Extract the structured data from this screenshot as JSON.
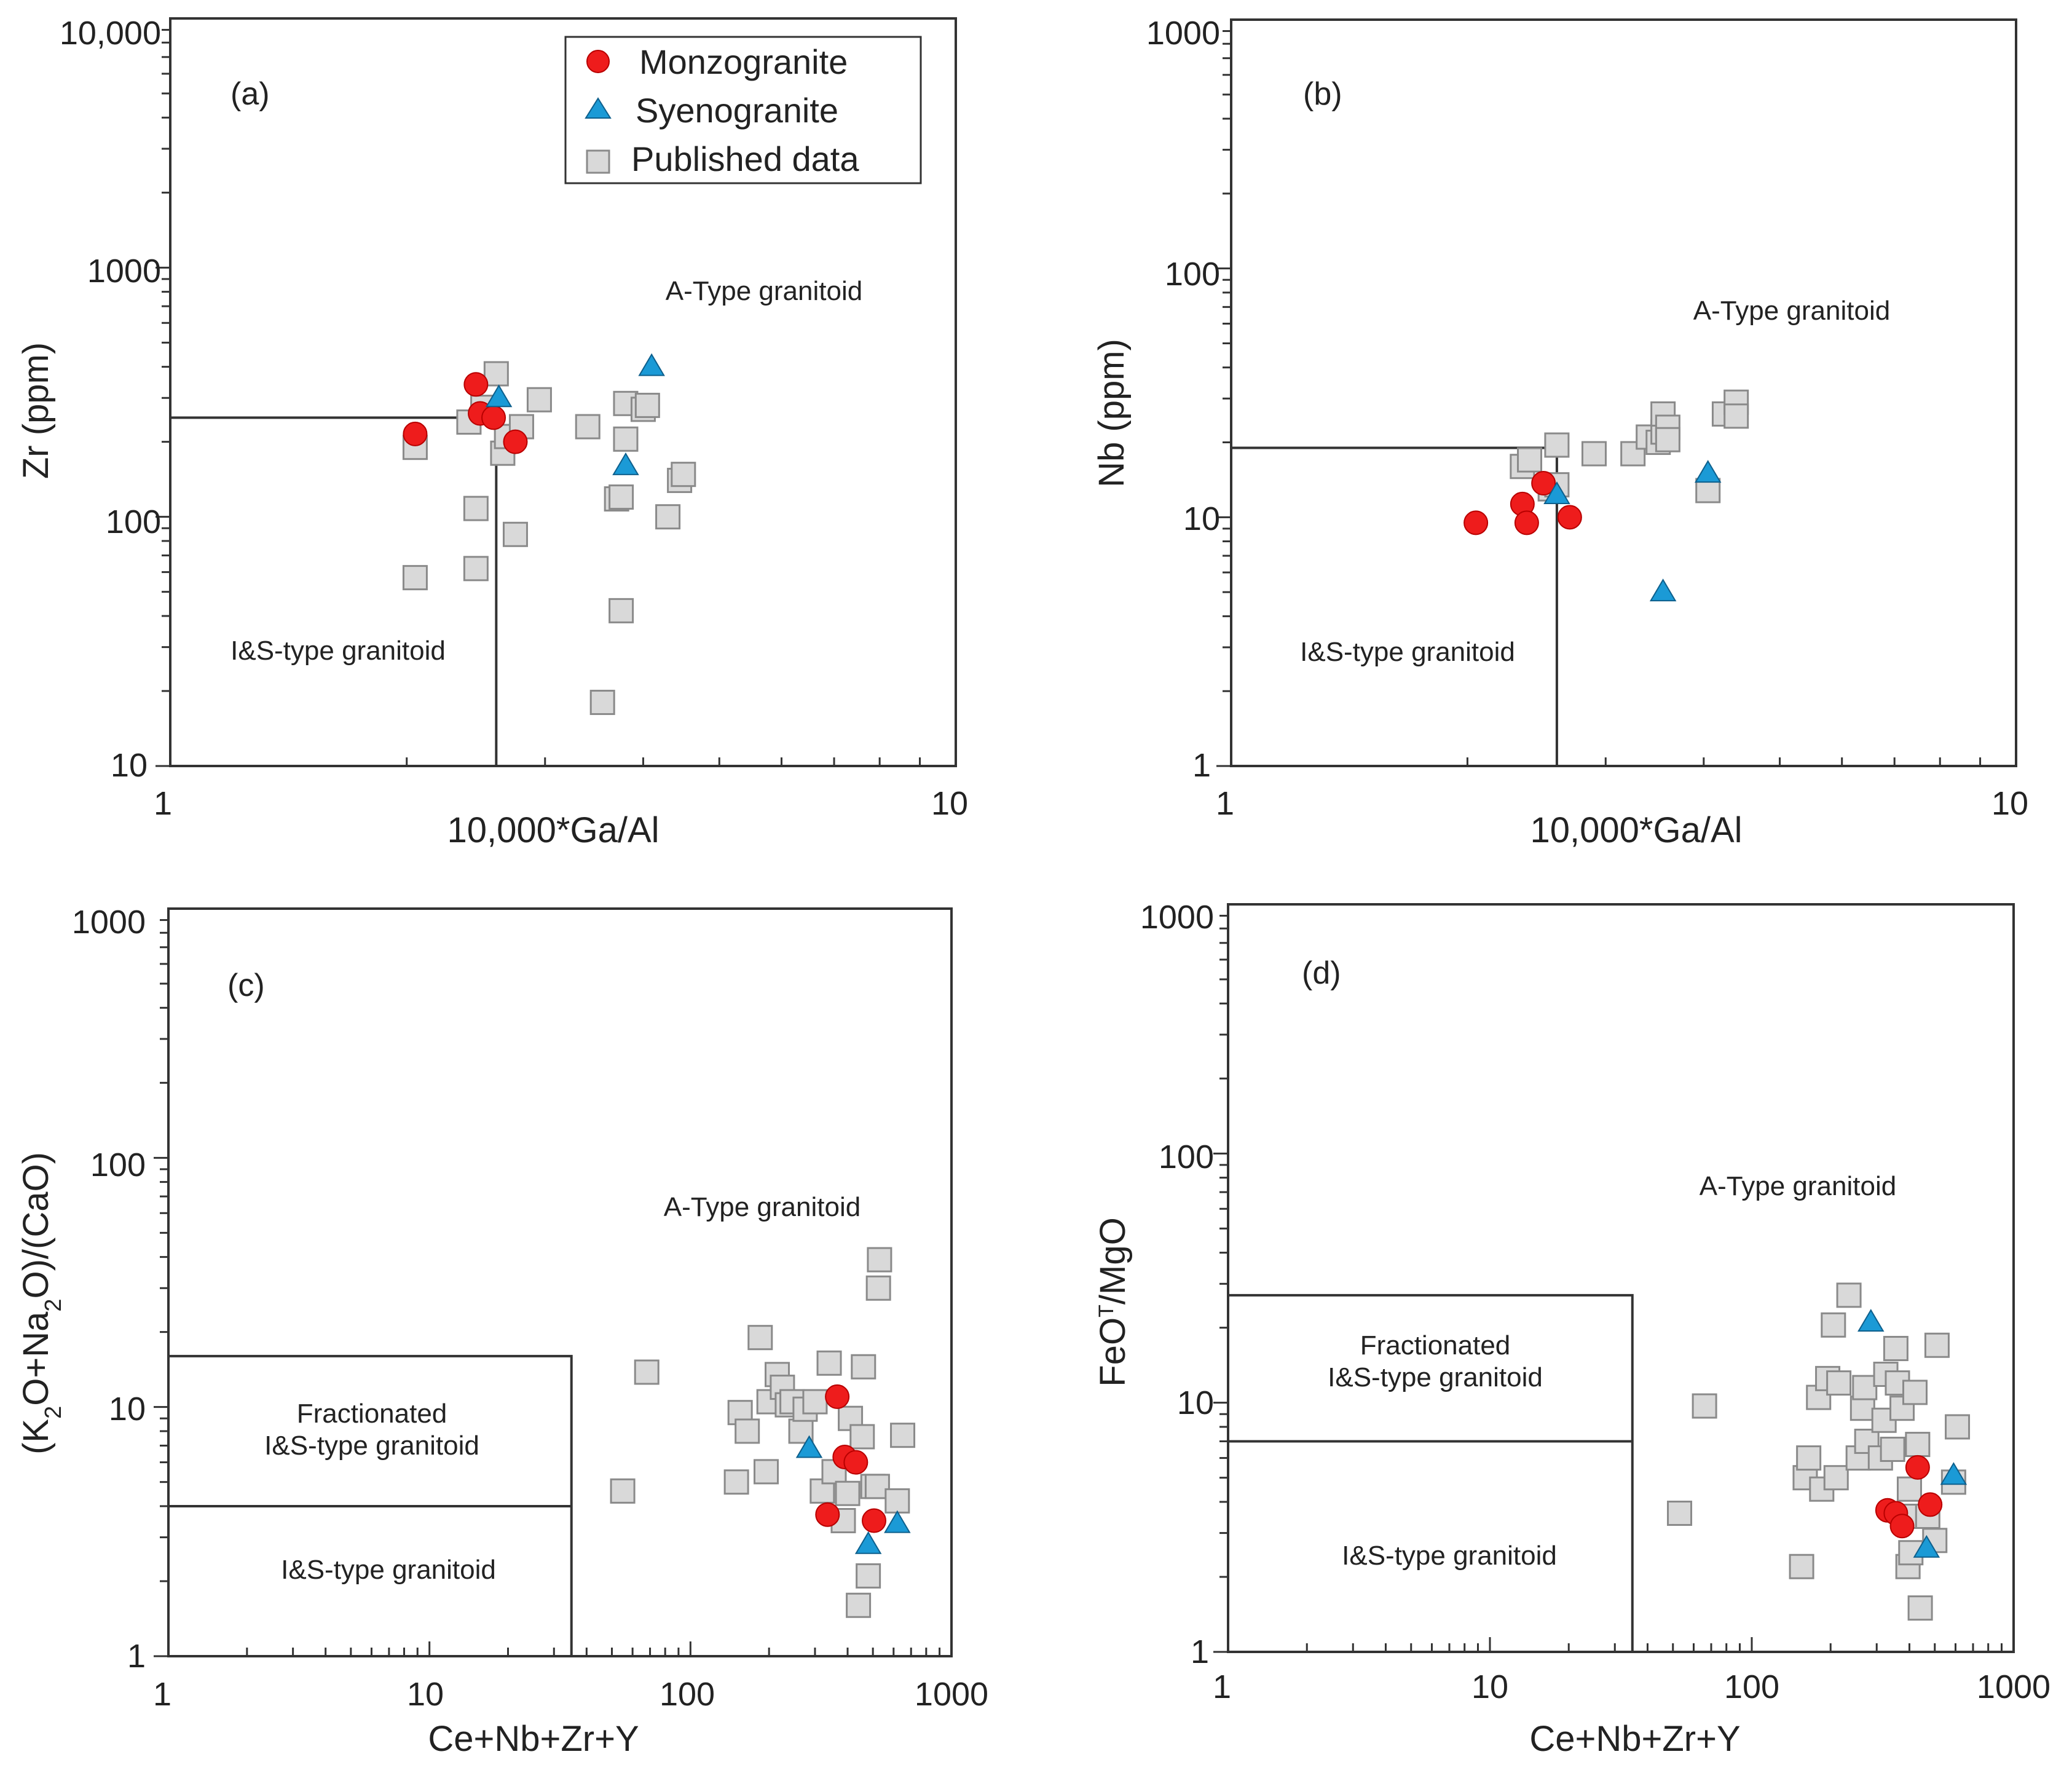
{
  "legend": {
    "monzogranite": "Monzogranite",
    "syenogranite": "Syenogranite",
    "published": "Published data"
  },
  "colors": {
    "monzogranite": "#ee1c1c",
    "syenogranite": "#1b9ad6",
    "published": "#d9d9d9"
  },
  "chart_data": [
    {
      "type": "scatter",
      "panel": "(a)",
      "xlabel": "10,000*Ga/Al",
      "ylabel": "Zr (ppm)",
      "xscale": "log",
      "yscale": "log",
      "xlim": [
        1,
        10
      ],
      "ylim": [
        10,
        10000
      ],
      "x_ticks": [
        "1",
        "10"
      ],
      "y_ticks": [
        "10",
        "100",
        "1000",
        "10,000"
      ],
      "region_labels": {
        "upper": "A-Type granitoid",
        "lower": "I&S-type granitoid"
      },
      "boundary": {
        "x": 2.6,
        "y": 250
      },
      "legend_position": "top-right",
      "series": [
        {
          "name": "Published data",
          "points": [
            [
              2.05,
              57
            ],
            [
              2.05,
              190
            ],
            [
              2.4,
              240
            ],
            [
              2.45,
              62
            ],
            [
              2.45,
              108
            ],
            [
              2.5,
              275
            ],
            [
              2.75,
              85
            ],
            [
              2.6,
              375
            ],
            [
              2.65,
              180
            ],
            [
              2.68,
              210
            ],
            [
              2.8,
              230
            ],
            [
              2.95,
              295
            ],
            [
              3.4,
              230
            ],
            [
              3.55,
              18
            ],
            [
              3.7,
              118
            ],
            [
              3.75,
              42
            ],
            [
              3.75,
              120
            ],
            [
              3.8,
              205
            ],
            [
              3.8,
              285
            ],
            [
              4.0,
              270
            ],
            [
              4.05,
              280
            ],
            [
              4.3,
              100
            ],
            [
              4.45,
              140
            ],
            [
              4.5,
              148
            ]
          ]
        },
        {
          "name": "Monzogranite",
          "points": [
            [
              2.05,
              215
            ],
            [
              2.45,
              340
            ],
            [
              2.48,
              260
            ],
            [
              2.58,
              250
            ],
            [
              2.75,
              200
            ]
          ]
        },
        {
          "name": "Syenogranite",
          "points": [
            [
              2.62,
              300
            ],
            [
              3.8,
              160
            ],
            [
              4.1,
              400
            ]
          ]
        }
      ]
    },
    {
      "type": "scatter",
      "panel": "(b)",
      "xlabel": "10,000*Ga/Al",
      "ylabel": "Nb (ppm)",
      "xscale": "log",
      "yscale": "log",
      "xlim": [
        1,
        10
      ],
      "ylim": [
        1,
        1000
      ],
      "x_ticks": [
        "1",
        "10"
      ],
      "y_ticks": [
        "1",
        "10",
        "100",
        "1000"
      ],
      "region_labels": {
        "upper": "A-Type granitoid",
        "lower": "I&S-type granitoid"
      },
      "boundary": {
        "x": 2.6,
        "y": 19
      },
      "series": [
        {
          "name": "Published data",
          "points": [
            [
              2.35,
              16
            ],
            [
              2.4,
              17
            ],
            [
              2.55,
              13
            ],
            [
              2.6,
              19.5
            ],
            [
              2.6,
              13.5
            ],
            [
              2.9,
              18
            ],
            [
              3.25,
              18
            ],
            [
              3.4,
              21
            ],
            [
              3.5,
              20
            ],
            [
              3.55,
              22
            ],
            [
              3.55,
              26
            ],
            [
              3.6,
              23
            ],
            [
              3.6,
              20.5
            ],
            [
              4.05,
              12.8
            ],
            [
              4.25,
              26
            ],
            [
              4.4,
              29
            ],
            [
              4.4,
              25.5
            ]
          ]
        },
        {
          "name": "Monzogranite",
          "points": [
            [
              2.05,
              9.5
            ],
            [
              2.35,
              11.3
            ],
            [
              2.38,
              9.5
            ],
            [
              2.5,
              13.7
            ],
            [
              2.7,
              10
            ]
          ]
        },
        {
          "name": "Syenogranite",
          "points": [
            [
              2.6,
              12.3
            ],
            [
              3.55,
              5
            ],
            [
              4.05,
              15
            ]
          ]
        }
      ]
    },
    {
      "type": "scatter",
      "panel": "(c)",
      "xlabel": "Ce+Nb+Zr+Y",
      "ylabel": "(K2O+Na2O)/(CaO)",
      "xscale": "log",
      "yscale": "log",
      "xlim": [
        1,
        1000
      ],
      "ylim": [
        1,
        1000
      ],
      "x_ticks": [
        "1",
        "10",
        "100",
        "1000"
      ],
      "y_ticks": [
        "1",
        "10",
        "100",
        "1000"
      ],
      "region_labels": {
        "upper": "A-Type granitoid",
        "middle": "Fractionated\nI&S-type granitoid",
        "lower": "I&S-type granitoid"
      },
      "boundary": {
        "x": 35,
        "y_upper": 16,
        "y_lower": 4
      },
      "series": [
        {
          "name": "Published data",
          "points": [
            [
              55,
              4.6
            ],
            [
              68,
              13.8
            ],
            [
              150,
              5
            ],
            [
              155,
              9.5
            ],
            [
              165,
              8
            ],
            [
              185,
              19
            ],
            [
              195,
              5.5
            ],
            [
              200,
              10.5
            ],
            [
              215,
              13.5
            ],
            [
              225,
              12
            ],
            [
              235,
              10.2
            ],
            [
              245,
              10.5
            ],
            [
              265,
              8
            ],
            [
              275,
              9.8
            ],
            [
              300,
              10.5
            ],
            [
              320,
              4.6
            ],
            [
              340,
              15
            ],
            [
              355,
              5.5
            ],
            [
              385,
              3.5
            ],
            [
              400,
              4.5
            ],
            [
              410,
              9
            ],
            [
              440,
              1.6
            ],
            [
              455,
              7.6
            ],
            [
              460,
              14.5
            ],
            [
              480,
              2.1
            ],
            [
              500,
              4.8
            ],
            [
              520,
              4.8
            ],
            [
              525,
              30
            ],
            [
              530,
              39
            ],
            [
              620,
              4.2
            ],
            [
              650,
              7.7
            ]
          ]
        },
        {
          "name": "Monzogranite",
          "points": [
            [
              335,
              3.7
            ],
            [
              365,
              11
            ],
            [
              390,
              6.3
            ],
            [
              430,
              6
            ],
            [
              505,
              3.5
            ]
          ]
        },
        {
          "name": "Syenogranite",
          "points": [
            [
              285,
              6.8
            ],
            [
              480,
              2.8
            ],
            [
              620,
              3.4
            ]
          ]
        }
      ]
    },
    {
      "type": "scatter",
      "panel": "(d)",
      "xlabel": "Ce+Nb+Zr+Y",
      "ylabel": "FeOT/MgO",
      "xscale": "log",
      "yscale": "log",
      "xlim": [
        1,
        1000
      ],
      "ylim": [
        1,
        1000
      ],
      "x_ticks": [
        "1",
        "10",
        "100",
        "1000"
      ],
      "y_ticks": [
        "1",
        "10",
        "100",
        "1000"
      ],
      "region_labels": {
        "upper": "A-Type granitoid",
        "middle": "Fractionated\nI&S-type granitoid",
        "lower": "I&S-type granitoid"
      },
      "boundary": {
        "x": 35,
        "y_upper": 27,
        "y_lower": 7
      },
      "series": [
        {
          "name": "Published data",
          "points": [
            [
              53,
              3.6
            ],
            [
              66,
              9.7
            ],
            [
              155,
              2.2
            ],
            [
              160,
              5
            ],
            [
              165,
              6
            ],
            [
              180,
              10.5
            ],
            [
              185,
              4.5
            ],
            [
              195,
              12.5
            ],
            [
              205,
              20.5
            ],
            [
              210,
              5
            ],
            [
              215,
              12
            ],
            [
              235,
              27
            ],
            [
              255,
              6
            ],
            [
              265,
              9.5
            ],
            [
              270,
              11.5
            ],
            [
              275,
              7
            ],
            [
              310,
              6
            ],
            [
              320,
              8.5
            ],
            [
              325,
              13
            ],
            [
              345,
              6.5
            ],
            [
              355,
              16.5
            ],
            [
              360,
              12
            ],
            [
              375,
              9.5
            ],
            [
              390,
              3.5
            ],
            [
              395,
              2.2
            ],
            [
              400,
              4.5
            ],
            [
              405,
              2.5
            ],
            [
              420,
              11
            ],
            [
              430,
              6.8
            ],
            [
              440,
              1.5
            ],
            [
              470,
              3.5
            ],
            [
              500,
              2.8
            ],
            [
              510,
              17
            ],
            [
              590,
              4.8
            ],
            [
              610,
              8
            ]
          ]
        },
        {
          "name": "Monzogranite",
          "points": [
            [
              330,
              3.7
            ],
            [
              355,
              3.6
            ],
            [
              375,
              3.2
            ],
            [
              430,
              5.5
            ],
            [
              480,
              3.9
            ]
          ]
        },
        {
          "name": "Syenogranite",
          "points": [
            [
              285,
              21
            ],
            [
              465,
              2.6
            ],
            [
              590,
              5.1
            ]
          ]
        }
      ]
    }
  ]
}
